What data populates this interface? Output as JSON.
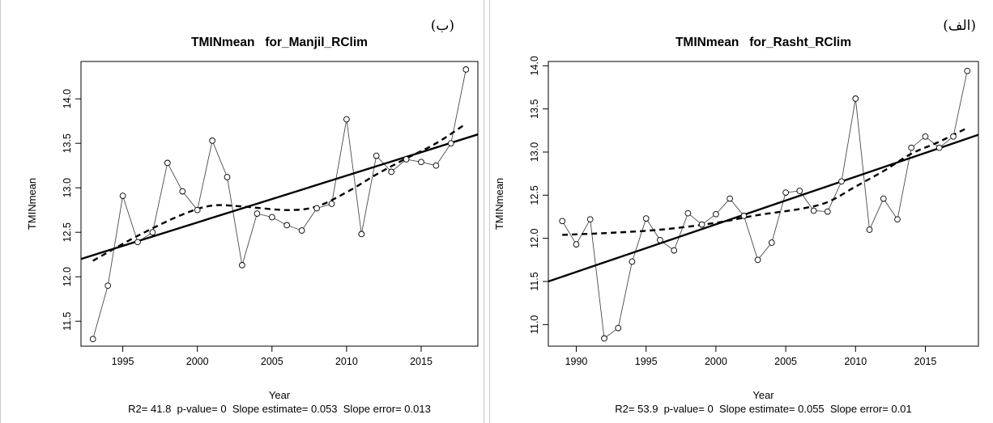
{
  "chart_data": [
    {
      "type": "line",
      "panel_label": "(ب)",
      "title": "TMINmean   for_Manjil_RClim",
      "xlabel": "Year",
      "ylabel": "TMINmean",
      "stats": "R2= 41.8  p-value= 0  Slope estimate= 0.053  Slope error= 0.013",
      "xlim": [
        1992.2,
        2018.8
      ],
      "ylim": [
        11.22,
        14.42
      ],
      "xticks": [
        1995,
        2000,
        2005,
        2010,
        2015
      ],
      "yticks": [
        11.5,
        12.0,
        12.5,
        13.0,
        13.5,
        14.0
      ],
      "ytick_labels": [
        "11.5",
        "12.0",
        "12.5",
        "13.0",
        "13.5",
        "14.0"
      ],
      "x": [
        1993,
        1994,
        1995,
        1996,
        1997,
        1998,
        1999,
        2000,
        2001,
        2002,
        2003,
        2004,
        2005,
        2006,
        2007,
        2008,
        2009,
        2010,
        2011,
        2012,
        2013,
        2014,
        2015,
        2016,
        2017,
        2018
      ],
      "series": [
        {
          "values": [
            11.3,
            11.9,
            12.91,
            12.39,
            12.5,
            13.28,
            12.96,
            12.75,
            13.53,
            13.12,
            12.13,
            12.71,
            12.67,
            12.58,
            12.52,
            12.77,
            12.82,
            13.77,
            12.48,
            13.36,
            13.18,
            13.32,
            13.29,
            13.25,
            13.5,
            14.33
          ]
        }
      ],
      "trend_line": {
        "y_at_xmin": 12.2,
        "y_at_xmax": 13.6
      },
      "smooth_curve": {
        "x": [
          1993,
          1996,
          1999,
          2001,
          2003,
          2006,
          2008,
          2010,
          2012,
          2014,
          2016,
          2018
        ],
        "y": [
          12.18,
          12.46,
          12.7,
          12.8,
          12.79,
          12.75,
          12.79,
          12.95,
          13.15,
          13.33,
          13.5,
          13.72
        ]
      },
      "grid": false,
      "legend": "none"
    },
    {
      "type": "line",
      "panel_label": "(الف)",
      "title": "TMINmean   for_Rasht_RClim",
      "xlabel": "Year",
      "ylabel": "TMINmean",
      "stats": "R2= 53.9  p-value= 0  Slope estimate= 0.055  Slope error= 0.01",
      "xlim": [
        1988.0,
        2018.8
      ],
      "ylim": [
        10.75,
        14.05
      ],
      "xticks": [
        1990,
        1995,
        2000,
        2005,
        2010,
        2015
      ],
      "yticks": [
        11.0,
        11.5,
        12.0,
        12.5,
        13.0,
        13.5,
        14.0
      ],
      "ytick_labels": [
        "11.0",
        "11.5",
        "12.0",
        "12.5",
        "13.0",
        "13.5",
        "14.0"
      ],
      "x": [
        1989,
        1990,
        1991,
        1992,
        1993,
        1994,
        1995,
        1996,
        1997,
        1998,
        1999,
        2000,
        2001,
        2002,
        2003,
        2004,
        2005,
        2006,
        2007,
        2008,
        2009,
        2010,
        2011,
        2012,
        2013,
        2014,
        2015,
        2016,
        2017,
        2018
      ],
      "series": [
        {
          "values": [
            12.2,
            11.93,
            12.22,
            10.84,
            10.96,
            11.73,
            12.23,
            11.98,
            11.86,
            12.29,
            12.16,
            12.28,
            12.46,
            12.26,
            11.75,
            11.95,
            12.53,
            12.55,
            12.32,
            12.31,
            12.66,
            13.62,
            12.1,
            12.46,
            12.22,
            13.05,
            13.18,
            13.05,
            13.18,
            13.94
          ]
        }
      ],
      "trend_line": {
        "y_at_xmin": 11.5,
        "y_at_xmax": 13.2
      },
      "smooth_curve": {
        "x": [
          1989,
          1992,
          1996,
          2000,
          2003,
          2006,
          2008,
          2010,
          2012,
          2014,
          2016,
          2018
        ],
        "y": [
          12.04,
          12.06,
          12.1,
          12.18,
          12.27,
          12.34,
          12.42,
          12.6,
          12.78,
          12.98,
          13.12,
          13.28
        ]
      },
      "grid": false,
      "legend": "none"
    }
  ]
}
